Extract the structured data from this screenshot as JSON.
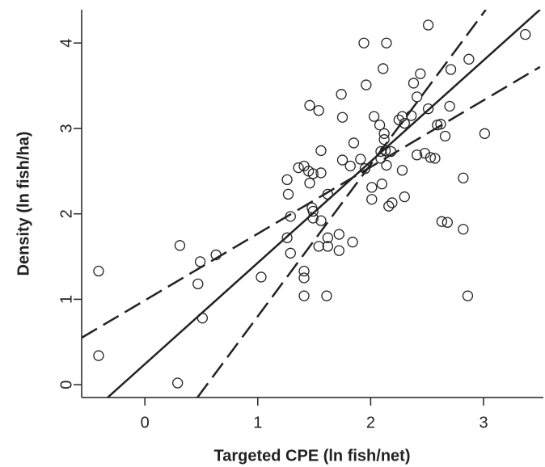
{
  "chart_data": {
    "type": "scatter",
    "x_label": "Targeted CPE (ln fish/net)",
    "y_label": "Density (ln fish/ha)",
    "xlim": [
      -0.56,
      3.53
    ],
    "ylim": [
      -0.15,
      4.39
    ],
    "xticks": [
      0,
      1,
      2,
      3
    ],
    "yticks": [
      0,
      1,
      2,
      3,
      4
    ],
    "color": "#222222",
    "x": [
      -0.41,
      -0.41,
      0.29,
      0.31,
      0.49,
      0.47,
      0.51,
      0.63,
      1.03,
      1.26,
      1.27,
      1.26,
      1.29,
      1.29,
      1.36,
      1.41,
      1.41,
      1.41,
      1.41,
      1.45,
      1.46,
      1.46,
      1.49,
      1.48,
      1.49,
      1.49,
      1.54,
      1.54,
      1.56,
      1.56,
      1.56,
      1.61,
      1.62,
      1.62,
      1.62,
      1.72,
      1.72,
      1.74,
      1.75,
      1.75,
      1.82,
      1.84,
      1.85,
      1.91,
      1.94,
      1.95,
      1.96,
      2.01,
      2.01,
      2.03,
      2.08,
      2.09,
      2.09,
      2.1,
      2.11,
      2.12,
      2.12,
      2.13,
      2.14,
      2.14,
      2.16,
      2.18,
      2.19,
      2.25,
      2.28,
      2.28,
      2.3,
      2.3,
      2.36,
      2.38,
      2.41,
      2.41,
      2.44,
      2.48,
      2.51,
      2.51,
      2.53,
      2.57,
      2.59,
      2.62,
      2.63,
      2.66,
      2.68,
      2.7,
      2.71,
      2.82,
      2.82,
      2.86,
      2.87,
      3.01,
      3.37
    ],
    "y": [
      1.33,
      0.34,
      0.02,
      1.63,
      1.44,
      1.18,
      0.78,
      1.52,
      1.26,
      2.4,
      2.23,
      1.72,
      1.97,
      1.54,
      2.54,
      2.56,
      1.33,
      1.25,
      1.04,
      2.5,
      3.27,
      2.36,
      2.47,
      2.07,
      2.03,
      1.95,
      3.21,
      1.62,
      2.48,
      2.74,
      1.92,
      1.04,
      1.72,
      1.62,
      2.23,
      1.76,
      1.57,
      3.4,
      3.13,
      2.63,
      2.56,
      1.67,
      2.83,
      2.64,
      4.0,
      2.53,
      3.51,
      2.31,
      2.17,
      3.14,
      3.04,
      2.73,
      2.65,
      2.35,
      3.7,
      2.94,
      2.87,
      2.74,
      4.0,
      2.57,
      2.09,
      2.73,
      2.13,
      3.1,
      3.14,
      2.51,
      3.06,
      2.2,
      3.15,
      3.53,
      3.37,
      2.69,
      3.64,
      2.71,
      4.21,
      3.23,
      2.66,
      2.65,
      3.04,
      3.05,
      1.91,
      2.91,
      1.9,
      3.26,
      3.69,
      2.42,
      1.82,
      1.04,
      3.81,
      2.94,
      4.1
    ],
    "lines": [
      {
        "dashed": false,
        "x": [
          -0.33,
          3.5
        ],
        "y": [
          -0.15,
          4.39
        ]
      },
      {
        "dashed": true,
        "x": [
          0.465,
          3.02
        ],
        "y": [
          -0.15,
          4.39
        ]
      },
      {
        "dashed": true,
        "x": [
          -0.56,
          3.5
        ],
        "y": [
          0.55,
          3.72
        ]
      }
    ]
  }
}
